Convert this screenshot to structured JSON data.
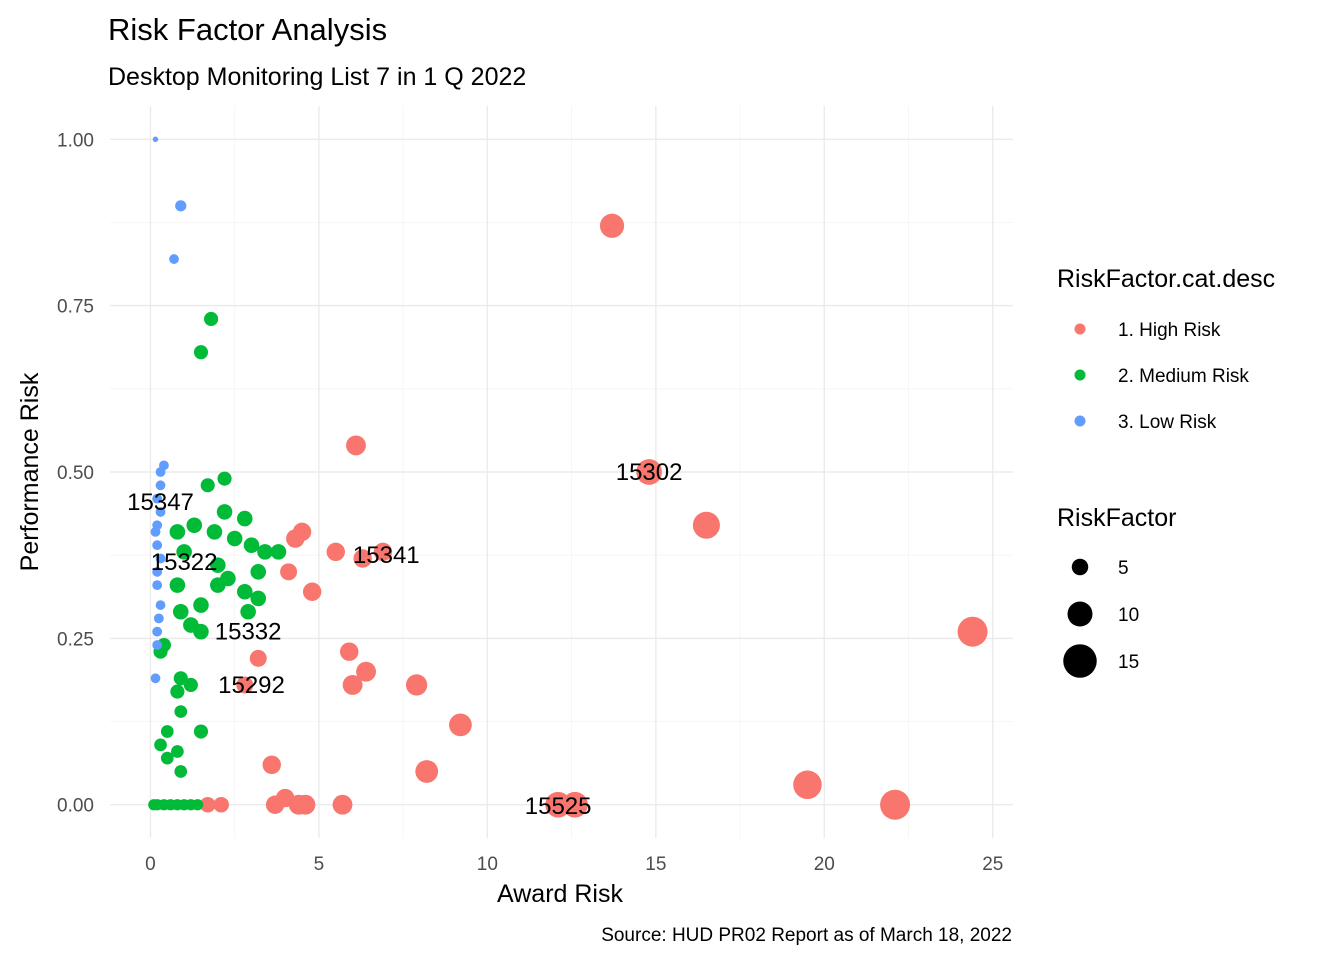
{
  "chart_data": {
    "type": "scatter",
    "title": "Risk Factor Analysis",
    "subtitle": "Desktop Monitoring List 7 in 1 Q 2022",
    "xlabel": "Award Risk",
    "ylabel": "Performance Risk",
    "caption": "Source: HUD PR02 Report as of March 18, 2022",
    "xlim": [
      -1.2,
      25.6
    ],
    "ylim": [
      -0.05,
      1.05
    ],
    "x_ticks": [
      "0",
      "5",
      "10",
      "15",
      "20",
      "25"
    ],
    "y_ticks": [
      "0.00",
      "0.25",
      "0.50",
      "0.75",
      "1.00"
    ],
    "grid": true,
    "legend_position": "right",
    "color_legend": {
      "title": "RiskFactor.cat.desc",
      "entries": [
        {
          "label": "1. High Risk",
          "color": "#F8766D"
        },
        {
          "label": "2. Medium Risk",
          "color": "#00BA38"
        },
        {
          "label": "3. Low Risk",
          "color": "#619CFF"
        }
      ]
    },
    "size_legend": {
      "title": "RiskFactor",
      "entries": [
        {
          "label": "5",
          "value": 5
        },
        {
          "label": "10",
          "value": 10
        },
        {
          "label": "15",
          "value": 15
        }
      ]
    },
    "series": [
      {
        "name": "1. High Risk",
        "color": "#F8766D",
        "points": [
          [
            13.7,
            0.87,
            15
          ],
          [
            14.8,
            0.5,
            16
          ],
          [
            16.5,
            0.42,
            17
          ],
          [
            24.4,
            0.26,
            19
          ],
          [
            19.5,
            0.03,
            18
          ],
          [
            22.1,
            0.0,
            19
          ],
          [
            12.1,
            0.0,
            16
          ],
          [
            12.6,
            0.0,
            16
          ],
          [
            6.1,
            0.54,
            12
          ],
          [
            4.3,
            0.4,
            11
          ],
          [
            4.5,
            0.41,
            11
          ],
          [
            5.5,
            0.38,
            11
          ],
          [
            6.3,
            0.37,
            11
          ],
          [
            6.9,
            0.38,
            11
          ],
          [
            4.1,
            0.35,
            10
          ],
          [
            4.8,
            0.32,
            11
          ],
          [
            3.2,
            0.22,
            10
          ],
          [
            5.9,
            0.23,
            11
          ],
          [
            6.4,
            0.2,
            12
          ],
          [
            6.0,
            0.18,
            12
          ],
          [
            7.9,
            0.18,
            13
          ],
          [
            2.8,
            0.18,
            10
          ],
          [
            9.2,
            0.12,
            14
          ],
          [
            3.6,
            0.06,
            11
          ],
          [
            8.2,
            0.05,
            14
          ],
          [
            4.0,
            0.01,
            11
          ],
          [
            1.7,
            0.0,
            9
          ],
          [
            2.1,
            0.0,
            9
          ],
          [
            3.7,
            0.0,
            11
          ],
          [
            4.4,
            0.0,
            12
          ],
          [
            4.6,
            0.0,
            12
          ],
          [
            5.7,
            0.0,
            12
          ]
        ]
      },
      {
        "name": "2. Medium Risk",
        "color": "#00BA38",
        "points": [
          [
            1.8,
            0.73,
            8
          ],
          [
            1.5,
            0.68,
            8
          ],
          [
            2.2,
            0.49,
            8
          ],
          [
            1.7,
            0.48,
            8
          ],
          [
            2.2,
            0.44,
            9
          ],
          [
            2.8,
            0.43,
            9
          ],
          [
            1.3,
            0.42,
            9
          ],
          [
            0.8,
            0.41,
            9
          ],
          [
            1.9,
            0.41,
            9
          ],
          [
            2.5,
            0.4,
            9
          ],
          [
            3.0,
            0.39,
            9
          ],
          [
            3.4,
            0.38,
            9
          ],
          [
            3.8,
            0.38,
            9
          ],
          [
            1.0,
            0.38,
            9
          ],
          [
            2.0,
            0.36,
            9
          ],
          [
            3.2,
            0.35,
            9
          ],
          [
            2.3,
            0.34,
            9
          ],
          [
            2.0,
            0.33,
            9
          ],
          [
            0.8,
            0.33,
            9
          ],
          [
            2.8,
            0.32,
            9
          ],
          [
            3.2,
            0.31,
            9
          ],
          [
            1.5,
            0.3,
            9
          ],
          [
            0.9,
            0.29,
            9
          ],
          [
            2.9,
            0.29,
            9
          ],
          [
            1.2,
            0.27,
            9
          ],
          [
            1.5,
            0.26,
            9
          ],
          [
            0.4,
            0.24,
            8
          ],
          [
            0.3,
            0.23,
            8
          ],
          [
            0.9,
            0.19,
            8
          ],
          [
            1.2,
            0.18,
            8
          ],
          [
            0.8,
            0.17,
            8
          ],
          [
            1.5,
            0.11,
            8
          ],
          [
            0.5,
            0.11,
            7
          ],
          [
            0.9,
            0.14,
            7
          ],
          [
            0.3,
            0.09,
            7
          ],
          [
            0.8,
            0.08,
            7
          ],
          [
            0.5,
            0.07,
            7
          ],
          [
            0.9,
            0.05,
            7
          ],
          [
            0.1,
            0.0,
            6
          ],
          [
            0.2,
            0.0,
            6
          ],
          [
            0.4,
            0.0,
            6
          ],
          [
            0.6,
            0.0,
            6
          ],
          [
            0.8,
            0.0,
            6
          ],
          [
            1.0,
            0.0,
            6
          ],
          [
            1.2,
            0.0,
            6
          ],
          [
            1.4,
            0.0,
            6
          ]
        ]
      },
      {
        "name": "3. Low Risk",
        "color": "#619CFF",
        "points": [
          [
            0.15,
            1.0,
            2
          ],
          [
            0.9,
            0.9,
            6
          ],
          [
            0.7,
            0.82,
            5
          ],
          [
            0.4,
            0.51,
            5
          ],
          [
            0.3,
            0.5,
            5
          ],
          [
            0.3,
            0.48,
            5
          ],
          [
            0.2,
            0.46,
            5
          ],
          [
            0.3,
            0.44,
            5
          ],
          [
            0.2,
            0.42,
            5
          ],
          [
            0.15,
            0.41,
            5
          ],
          [
            0.2,
            0.39,
            5
          ],
          [
            0.3,
            0.37,
            5
          ],
          [
            0.2,
            0.35,
            5
          ],
          [
            0.2,
            0.33,
            5
          ],
          [
            0.3,
            0.3,
            5
          ],
          [
            0.25,
            0.28,
            5
          ],
          [
            0.2,
            0.26,
            5
          ],
          [
            0.2,
            0.24,
            5
          ],
          [
            0.15,
            0.19,
            5
          ]
        ]
      }
    ],
    "labels": [
      {
        "text": "15302",
        "x": 14.8,
        "y": 0.5
      },
      {
        "text": "15347",
        "x": 0.3,
        "y": 0.455
      },
      {
        "text": "15341",
        "x": 7.0,
        "y": 0.375
      },
      {
        "text": "15322",
        "x": 1.0,
        "y": 0.365
      },
      {
        "text": "15332",
        "x": 2.9,
        "y": 0.26
      },
      {
        "text": "15292",
        "x": 3.0,
        "y": 0.18
      },
      {
        "text": "15525",
        "x": 12.1,
        "y": -0.002
      }
    ]
  }
}
